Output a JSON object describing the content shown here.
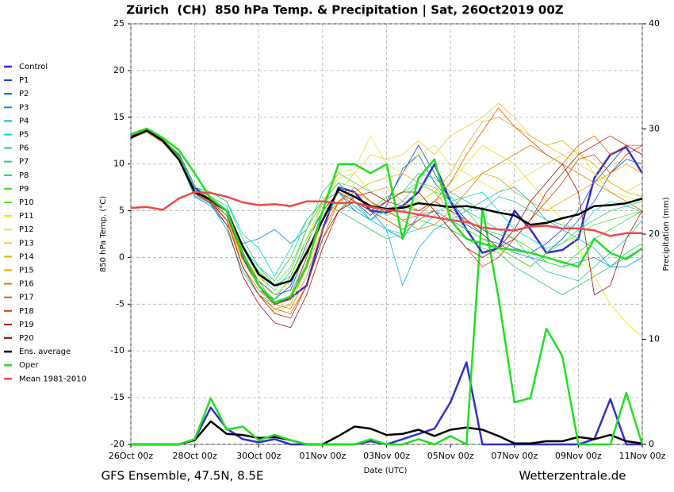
{
  "chart_data": {
    "type": "line",
    "title": "Zürich  (CH)  850 hPa Temp. & Precipitation | Sat, 26Oct2019 00Z",
    "ylabel": "850 hPa Temp. (°C)",
    "y2label": "Precipitation (mm)",
    "xlabel": "Date (UTC)",
    "footer_left": "GFS Ensemble, 47.5N, 8.5E",
    "footer_right": "Wetterzentrale.de",
    "categories": [
      "26Oct 00z",
      null,
      null,
      null,
      "28Oct 00z",
      null,
      null,
      null,
      "30Oct 00z",
      null,
      null,
      null,
      "01Nov 00z",
      null,
      null,
      null,
      "03Nov 00z",
      null,
      null,
      null,
      "05Nov 00z",
      null,
      null,
      null,
      "07Nov 00z",
      null,
      null,
      null,
      "09Nov 00z",
      null,
      null,
      null,
      "11Nov 00z"
    ],
    "ylim": [
      -20,
      25
    ],
    "yticks": [
      -20,
      -15,
      -10,
      -5,
      0,
      5,
      10,
      15,
      20,
      25
    ],
    "y2lim": [
      0,
      40
    ],
    "y2ticks": [
      0,
      10,
      20,
      30,
      40
    ],
    "grid": true,
    "series": [
      {
        "name": "Control",
        "color": "#3030d0",
        "linewidth": 2.5,
        "values": [
          12.8,
          13.6,
          12.5,
          11,
          7.5,
          6,
          5,
          0,
          -3,
          -5,
          -4.3,
          -3,
          3,
          7.5,
          7,
          5,
          4.8,
          5.5,
          7,
          10,
          6,
          3,
          0.5,
          1,
          5,
          3,
          0.5,
          0.8,
          2,
          8.5,
          11,
          11.8,
          9
        ],
        "precipitation": [
          0,
          0,
          0,
          0,
          0.5,
          3.5,
          1.5,
          0.5,
          0.2,
          0.5,
          0,
          0,
          0,
          0,
          0,
          0.3,
          0,
          0.5,
          1,
          1.5,
          4,
          7.8,
          0,
          0,
          0,
          0,
          0,
          0,
          0,
          0.5,
          4.3,
          0,
          0
        ]
      },
      {
        "name": "P1",
        "color": "#0040d0",
        "linewidth": 0.8,
        "values": [
          12.8,
          13.5,
          12.4,
          10.8,
          7,
          6,
          4.5,
          0,
          -2.5,
          -4,
          -3.5,
          1,
          6,
          8,
          6,
          4.5,
          6,
          9,
          12,
          9,
          6,
          4,
          3,
          2,
          1,
          0.5,
          1.5,
          3,
          5,
          8,
          10,
          12,
          11
        ]
      },
      {
        "name": "P2",
        "color": "#0060d8",
        "linewidth": 0.8,
        "values": [
          12.9,
          13.6,
          12.5,
          10.9,
          6.8,
          5.8,
          4,
          -1,
          -3.5,
          -4.5,
          -3,
          1.5,
          5,
          7,
          5,
          4,
          5.5,
          9.5,
          11,
          8,
          6,
          3.5,
          2.5,
          1,
          0,
          -1,
          0.5,
          2,
          4,
          6,
          9,
          10.5,
          10
        ]
      },
      {
        "name": "P3",
        "color": "#0090e0",
        "linewidth": 0.8,
        "values": [
          13,
          13.5,
          12.3,
          10.5,
          6.5,
          5.5,
          3.5,
          1.5,
          2,
          3,
          1.5,
          3,
          6,
          7,
          6,
          5,
          3,
          2,
          4.5,
          5,
          4,
          3,
          2,
          1.5,
          0.5,
          0,
          -0.5,
          -1,
          -0.5,
          0,
          -1,
          -1,
          0
        ]
      },
      {
        "name": "P4",
        "color": "#00b8e8",
        "linewidth": 0.8,
        "values": [
          12.8,
          13.4,
          12.4,
          10.6,
          6.6,
          5.7,
          3,
          -1.5,
          -4,
          -5,
          -4,
          0,
          5,
          7,
          5.5,
          4,
          3,
          -3,
          1,
          3,
          4,
          5,
          6,
          7,
          7.5,
          6,
          4,
          3,
          2,
          1,
          -1,
          0,
          1
        ]
      },
      {
        "name": "P5",
        "color": "#00d8d8",
        "linewidth": 0.8,
        "values": [
          12.9,
          13.5,
          12.6,
          10.7,
          7.5,
          7,
          6,
          2.5,
          1,
          -2,
          1,
          4,
          6,
          8,
          6,
          4,
          3,
          2.5,
          3,
          4.5,
          6,
          6.5,
          7,
          5,
          3,
          2,
          1,
          1.5,
          3,
          5,
          6,
          5.5,
          6
        ]
      },
      {
        "name": "P6",
        "color": "#20d0a8",
        "linewidth": 0.8,
        "values": [
          13,
          13.6,
          12.6,
          10.8,
          7.2,
          6.5,
          5.5,
          1,
          -1,
          -3,
          -2,
          2,
          5,
          6,
          5,
          4,
          5,
          6,
          8,
          7.5,
          6,
          5,
          4,
          3,
          2,
          0,
          -1.5,
          -2,
          -2.5,
          -1,
          0.5,
          2,
          4
        ]
      },
      {
        "name": "P7",
        "color": "#20d088",
        "linewidth": 0.8,
        "values": [
          12.9,
          13.4,
          12.3,
          10.4,
          7,
          6.2,
          5,
          1,
          -2,
          -3.5,
          -1.5,
          3,
          7,
          9,
          8,
          7,
          6,
          7,
          9,
          8.5,
          7,
          6,
          5,
          6.5,
          6,
          5,
          4,
          3.5,
          3,
          4,
          5,
          5.5,
          5
        ]
      },
      {
        "name": "P8",
        "color": "#20d058",
        "linewidth": 0.8,
        "values": [
          13,
          13.7,
          12.7,
          11,
          7.5,
          7,
          6,
          2,
          -1,
          -2.5,
          0,
          4,
          6,
          5,
          4,
          3,
          2,
          2.5,
          4,
          3.5,
          3,
          2,
          1,
          0.5,
          -1,
          -2,
          -3,
          -4,
          -3,
          -2,
          -1,
          0.5,
          1.5
        ]
      },
      {
        "name": "P9",
        "color": "#30e030",
        "linewidth": 0.8,
        "values": [
          13.1,
          13.7,
          12.6,
          10.7,
          7,
          6,
          4.5,
          -0.5,
          -3,
          -4.5,
          -2,
          2,
          5,
          7,
          6,
          5,
          6.5,
          7,
          8,
          7,
          6.5,
          5,
          3,
          2.5,
          2,
          1,
          -0.5,
          -1,
          0.5,
          2,
          3,
          4,
          5
        ]
      },
      {
        "name": "P10",
        "color": "#60e020",
        "linewidth": 0.8,
        "values": [
          13.2,
          13.8,
          12.7,
          11,
          7.6,
          6.5,
          5,
          1,
          -1.5,
          -3,
          -1,
          3,
          6,
          8,
          7.5,
          6,
          4.5,
          5,
          6,
          7,
          5,
          3,
          2,
          1,
          0,
          -1,
          0.5,
          1.5,
          2.5,
          3.5,
          4,
          4.5,
          5
        ]
      },
      {
        "name": "P11",
        "color": "#e8e800",
        "linewidth": 0.8,
        "values": [
          13,
          13.6,
          12.5,
          10.6,
          7,
          6,
          4,
          0,
          -2,
          -4,
          -2.5,
          2,
          6,
          8.5,
          9,
          7,
          6,
          5.5,
          6,
          7,
          8,
          10,
          12,
          11,
          10,
          8,
          6,
          4,
          1,
          -2,
          -5,
          -7,
          -8.5
        ]
      },
      {
        "name": "P12",
        "color": "#f0e040",
        "linewidth": 0.8,
        "values": [
          12.8,
          13.4,
          12.4,
          10.5,
          6.8,
          6,
          4.5,
          -0.5,
          -3,
          -5,
          -4,
          1,
          6,
          9,
          9.5,
          13,
          10,
          9,
          11,
          12,
          10,
          9,
          8,
          7,
          8,
          9,
          10,
          11,
          11.5,
          9,
          7,
          6.5,
          6
        ]
      },
      {
        "name": "P13",
        "color": "#f0c830",
        "linewidth": 0.8,
        "values": [
          12.9,
          13.5,
          12.4,
          10.6,
          7,
          6.5,
          5,
          0,
          -3,
          -6,
          -5,
          -1,
          4,
          7,
          9,
          11,
          10.5,
          11,
          12.5,
          11,
          13,
          14,
          15,
          16.5,
          15,
          13,
          12,
          11,
          10,
          9,
          8,
          7,
          8
        ]
      },
      {
        "name": "P14",
        "color": "#e0b000",
        "linewidth": 0.8,
        "values": [
          13,
          13.6,
          12.5,
          10.7,
          7,
          6,
          4.5,
          -1,
          -4,
          -5.5,
          -5,
          -1,
          3,
          6,
          7,
          8,
          8.5,
          9,
          8,
          7,
          9,
          12,
          14.5,
          15,
          14,
          13,
          12,
          12.5,
          11,
          10,
          8,
          7,
          6.5
        ]
      },
      {
        "name": "P15",
        "color": "#f0a000",
        "linewidth": 0.8,
        "values": [
          12.9,
          13.5,
          12.4,
          10.5,
          6.8,
          6,
          4,
          -1,
          -3.5,
          -5,
          -4.5,
          -0.5,
          4,
          6,
          6.5,
          7,
          7.5,
          6,
          5,
          6,
          7,
          8,
          9,
          8.5,
          7,
          6,
          5,
          6,
          7,
          8,
          9,
          10,
          9
        ]
      },
      {
        "name": "P16",
        "color": "#e08000",
        "linewidth": 0.8,
        "values": [
          13,
          13.5,
          12.4,
          10.6,
          7,
          6.2,
          5,
          0.5,
          -2.5,
          -5,
          -5.5,
          -2,
          3,
          6,
          7,
          6,
          5,
          4,
          3,
          3.5,
          5,
          7,
          9,
          10,
          11,
          12,
          11,
          10,
          9,
          8,
          7,
          6,
          5
        ]
      },
      {
        "name": "P17",
        "color": "#e06000",
        "linewidth": 0.8,
        "values": [
          12.8,
          13.4,
          12.3,
          10.4,
          6.8,
          5.8,
          4,
          -1,
          -4,
          -5.5,
          -6,
          -3,
          2,
          6,
          7.5,
          6,
          5,
          4,
          4.5,
          6,
          8,
          11,
          13.5,
          16,
          14,
          12.5,
          11,
          10,
          12,
          13,
          11,
          12,
          12
        ]
      },
      {
        "name": "P18",
        "color": "#d04000",
        "linewidth": 0.8,
        "values": [
          12.9,
          13.5,
          12.4,
          10.5,
          7,
          6,
          4.5,
          0,
          -3,
          -5,
          -4.5,
          0,
          5,
          7,
          6,
          5,
          4,
          3,
          4,
          5,
          3,
          1,
          -1,
          0,
          2,
          4,
          6,
          8,
          10.5,
          11,
          9,
          11,
          12
        ]
      },
      {
        "name": "P19",
        "color": "#c02000",
        "linewidth": 0.8,
        "values": [
          13,
          13.6,
          12.5,
          10.6,
          7,
          6,
          4,
          -1,
          -4,
          -6,
          -6.5,
          -3,
          2,
          5,
          6.5,
          7,
          6,
          5.5,
          5,
          6,
          5,
          4,
          2.5,
          1,
          2,
          4,
          7,
          9,
          11,
          12,
          13,
          12,
          11
        ]
      },
      {
        "name": "P20",
        "color": "#a01010",
        "linewidth": 0.8,
        "values": [
          13,
          13.5,
          12.4,
          10.6,
          6.9,
          5.8,
          3.5,
          -2,
          -5,
          -7,
          -7.5,
          -4,
          1,
          5,
          6,
          5,
          6,
          7,
          7,
          5,
          3,
          1,
          0,
          1,
          3,
          6,
          8,
          10,
          7,
          -4,
          -3,
          2,
          5
        ]
      },
      {
        "name": "Ens. average",
        "color": "#000000",
        "linewidth": 2.5,
        "values": [
          12.8,
          13.6,
          12.5,
          10.5,
          7,
          6.2,
          5,
          1.2,
          -1.8,
          -3,
          -2.5,
          0.5,
          4,
          7.3,
          6.5,
          5.5,
          5.2,
          5.3,
          5.8,
          5.6,
          5.4,
          5.5,
          5.2,
          4.8,
          4.5,
          3.5,
          3.7,
          4.2,
          4.6,
          5.5,
          5.6,
          5.8,
          6.3
        ],
        "precipitation": [
          0,
          0,
          0,
          0,
          0.4,
          2.2,
          1,
          0.9,
          0.6,
          0.7,
          0.4,
          0,
          0,
          0.8,
          1.7,
          1.5,
          0.9,
          1,
          1.4,
          0.8,
          1.4,
          1.6,
          1.4,
          0.8,
          0.1,
          0.1,
          0.3,
          0.3,
          0.7,
          0.5,
          0.9,
          0.3,
          0.1
        ]
      },
      {
        "name": "Oper",
        "color": "#20e020",
        "linewidth": 2.5,
        "values": [
          13.2,
          13.8,
          12.8,
          11.5,
          9,
          6.3,
          5,
          0.5,
          -3,
          -4.8,
          -4.2,
          -1,
          5,
          10,
          10,
          9,
          10,
          2,
          8.5,
          10.5,
          4,
          2,
          1.5,
          1,
          0.8,
          0.5,
          0,
          -0.5,
          -1,
          2,
          0.5,
          -0.2,
          1
        ],
        "precipitation": [
          0,
          0,
          0,
          0,
          0.5,
          4.4,
          1.4,
          1.7,
          0.4,
          0.9,
          0.4,
          0,
          0,
          0,
          0,
          0.5,
          0,
          0,
          0.5,
          0,
          0.8,
          0,
          22.5,
          14,
          4,
          4.4,
          11,
          8.4,
          0,
          0,
          0,
          4.9,
          0
        ]
      },
      {
        "name": "Mean 1981-2010",
        "color": "#f04848",
        "linewidth": 2.5,
        "values": [
          5.3,
          5.4,
          5.1,
          6.3,
          7,
          6.9,
          6.5,
          5.9,
          5.6,
          5.7,
          5.5,
          6,
          6,
          5.8,
          5.9,
          5.4,
          5.1,
          4.9,
          4.6,
          4.3,
          4,
          3.8,
          3.2,
          3,
          2.9,
          3.3,
          3.4,
          3.1,
          3.1,
          2.9,
          2.3,
          2.6,
          2.6
        ]
      }
    ]
  }
}
